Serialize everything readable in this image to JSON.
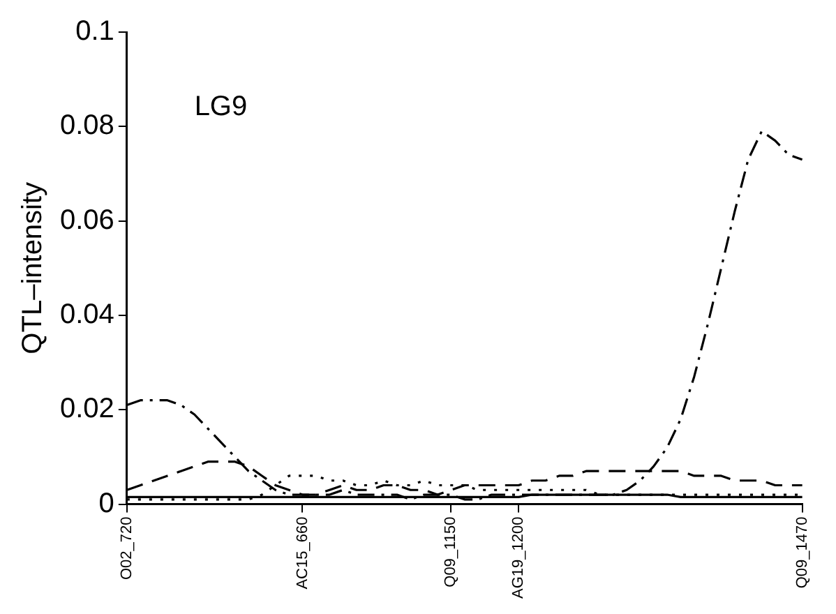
{
  "chart_data": {
    "type": "line",
    "ylabel": "QTL–intensity",
    "annotations": [
      "LG9"
    ],
    "categories": [
      "O02_720",
      null,
      null,
      null,
      null,
      null,
      null,
      null,
      null,
      null,
      null,
      null,
      null,
      "AC15_660",
      null,
      null,
      null,
      null,
      null,
      null,
      null,
      null,
      null,
      null,
      "Q09_1150",
      null,
      null,
      null,
      null,
      "AG19_1200",
      null,
      null,
      null,
      null,
      null,
      null,
      null,
      null,
      null,
      null,
      null,
      null,
      null,
      null,
      null,
      null,
      null,
      null,
      null,
      null,
      "Q09_1470"
    ],
    "ylim": [
      0,
      0.1
    ],
    "yticks": [
      0,
      0.02,
      0.04,
      0.06,
      0.08,
      0.1
    ],
    "grid": false,
    "legend": false,
    "marker": "none",
    "series": [
      {
        "color": "#000000",
        "line_style": "solid",
        "values": [
          0.0015,
          0.0015,
          0.0015,
          0.0015,
          0.0015,
          0.0015,
          0.0015,
          0.0015,
          0.0015,
          0.0015,
          0.0015,
          0.0015,
          0.0015,
          0.0015,
          0.0015,
          0.0015,
          0.0015,
          0.0015,
          0.0015,
          0.0015,
          0.0015,
          0.0015,
          0.0015,
          0.0015,
          0.0015,
          0.0015,
          0.0015,
          0.0015,
          0.0015,
          0.0015,
          0.002,
          0.002,
          0.002,
          0.002,
          0.002,
          0.002,
          0.002,
          0.002,
          0.002,
          0.002,
          0.002,
          0.0015,
          0.0015,
          0.0015,
          0.0015,
          0.0015,
          0.0015,
          0.0015,
          0.0015,
          0.0015,
          0.0015
        ]
      },
      {
        "color": "#000000",
        "line_style": "dashed",
        "values": [
          0.003,
          0.004,
          0.005,
          0.006,
          0.007,
          0.008,
          0.009,
          0.009,
          0.009,
          0.008,
          0.006,
          0.004,
          0.003,
          0.002,
          0.002,
          0.003,
          0.004,
          0.003,
          0.003,
          0.004,
          0.004,
          0.003,
          0.003,
          0.002,
          0.003,
          0.004,
          0.004,
          0.004,
          0.004,
          0.004,
          0.005,
          0.005,
          0.006,
          0.006,
          0.007,
          0.007,
          0.007,
          0.007,
          0.007,
          0.007,
          0.007,
          0.007,
          0.006,
          0.006,
          0.006,
          0.005,
          0.005,
          0.005,
          0.004,
          0.004,
          0.004
        ]
      },
      {
        "color": "#000000",
        "line_style": "dotted",
        "values": [
          0.001,
          0.001,
          0.001,
          0.001,
          0.001,
          0.001,
          0.001,
          0.001,
          0.001,
          0.001,
          0.002,
          0.004,
          0.006,
          0.006,
          0.006,
          0.005,
          0.005,
          0.004,
          0.004,
          0.005,
          0.004,
          0.004,
          0.005,
          0.004,
          0.004,
          0.004,
          0.003,
          0.003,
          0.003,
          0.003,
          0.003,
          0.003,
          0.003,
          0.003,
          0.003,
          0.002,
          0.002,
          0.002,
          0.002,
          0.002,
          0.002,
          0.002,
          0.002,
          0.002,
          0.002,
          0.002,
          0.002,
          0.002,
          0.002,
          0.002,
          0.002
        ]
      },
      {
        "color": "#000000",
        "line_style": "dashdot",
        "values": [
          0.021,
          0.022,
          0.022,
          0.022,
          0.021,
          0.019,
          0.016,
          0.013,
          0.01,
          0.007,
          0.005,
          0.003,
          0.002,
          0.002,
          0.002,
          0.002,
          0.003,
          0.002,
          0.002,
          0.002,
          0.002,
          0.001,
          0.002,
          0.002,
          0.002,
          0.001,
          0.001,
          0.002,
          0.002,
          0.002,
          0.002,
          0.002,
          0.002,
          0.002,
          0.002,
          0.002,
          0.002,
          0.003,
          0.005,
          0.008,
          0.012,
          0.018,
          0.027,
          0.038,
          0.05,
          0.062,
          0.073,
          0.079,
          0.077,
          0.074,
          0.073
        ]
      }
    ]
  }
}
